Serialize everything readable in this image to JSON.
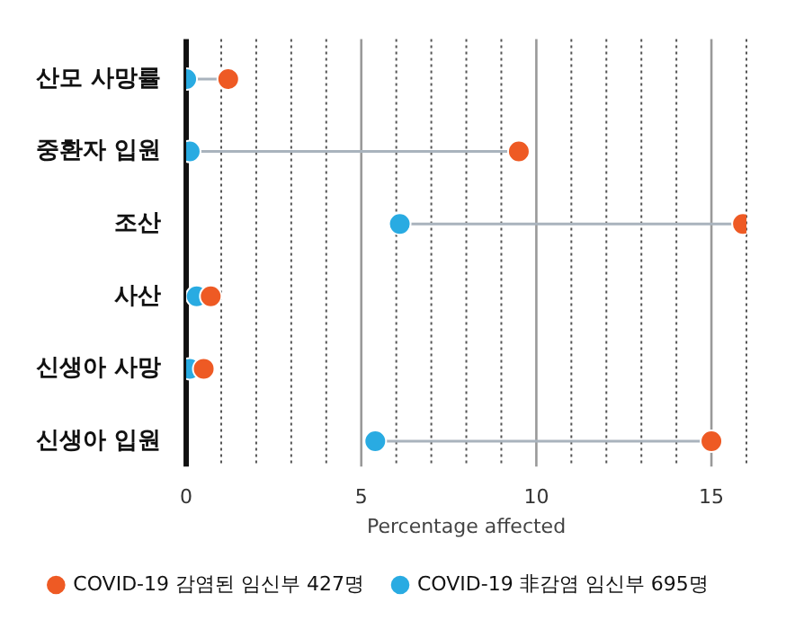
{
  "chart_data": {
    "type": "scatter",
    "orientation": "horizontal",
    "categories": [
      "산모 사망률",
      "중환자 입원",
      "조산",
      "사산",
      "신생아 사망",
      "신생아 입원"
    ],
    "xlabel": "Percentage affected",
    "xlim": [
      0,
      16
    ],
    "xticks": [
      0,
      {
        "value": 1,
        "label": null
      },
      {
        "value": 2,
        "label": null
      },
      {
        "value": 3,
        "label": null
      },
      {
        "value": 4,
        "label": null
      },
      5,
      {
        "value": 6,
        "label": null
      },
      {
        "value": 7,
        "label": null
      },
      {
        "value": 8,
        "label": null
      },
      {
        "value": 9,
        "label": null
      },
      10,
      {
        "value": 11,
        "label": null
      },
      {
        "value": 12,
        "label": null
      },
      {
        "value": 13,
        "label": null
      },
      {
        "value": 14,
        "label": null
      },
      15,
      {
        "value": 16,
        "label": null
      }
    ],
    "grid": "x",
    "legend": "bottom",
    "marker": "circle",
    "series": [
      {
        "name": "COVID-19 감염된 임신부 427명",
        "color": "#ee5a24",
        "values": [
          1.2,
          9.5,
          15.9,
          0.7,
          0.5,
          15.0
        ]
      },
      {
        "name": "COVID-19 非감염 임신부 695명",
        "color": "#29abe2",
        "values": [
          0,
          0.1,
          6.1,
          0.3,
          0.1,
          5.4
        ]
      }
    ]
  }
}
